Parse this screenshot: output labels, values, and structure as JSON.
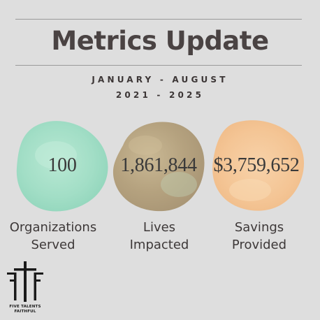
{
  "header": {
    "title": "Metrics Update",
    "period_months": "JANUARY - AUGUST",
    "period_years": "2021 - 2025"
  },
  "metrics": [
    {
      "value": "100",
      "caption_line1": "Organizations",
      "caption_line2": "Served",
      "color": "#a4dfc8"
    },
    {
      "value": "1,861,844",
      "caption_line1": "Lives",
      "caption_line2": "Impacted",
      "color": "#b9a683"
    },
    {
      "value": "$3,759,652",
      "caption_line1": "Savings",
      "caption_line2": "Provided",
      "color": "#f5c89a"
    }
  ],
  "logo": {
    "line1": "FIVE TALENTS",
    "line2": "FAITHFUL",
    "icon": "cross-ff-logo-icon"
  },
  "colors": {
    "background": "#dedede",
    "title": "#4a4343",
    "rule": "#9a9a9a"
  }
}
